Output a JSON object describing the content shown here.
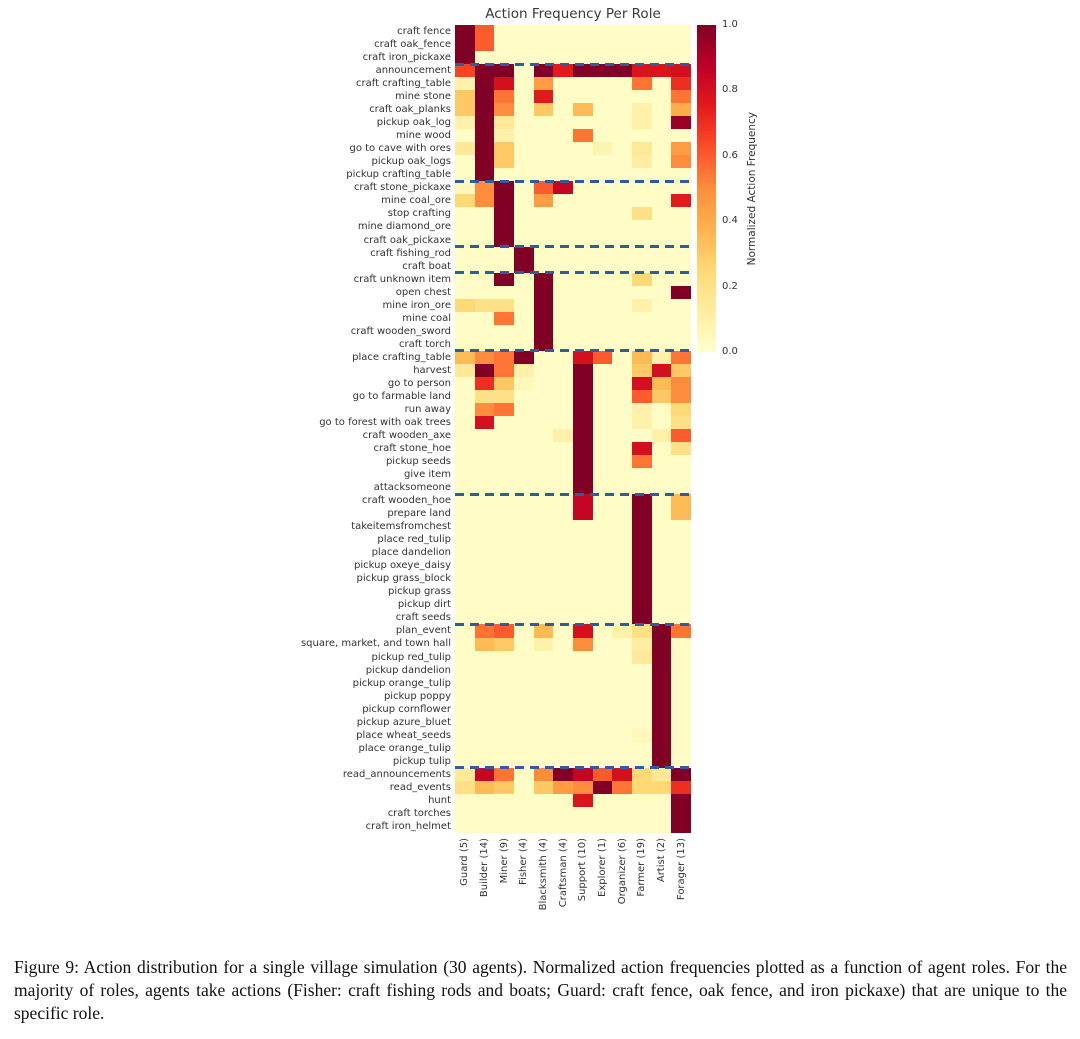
{
  "figure": {
    "caption": "Figure 9: Action distribution for a single village simulation (30 agents). Normalized action frequencies plotted as a function of agent roles. For the majority of roles, agents take actions (Fisher: craft fishing rods and boats; Guard: craft fence, oak fence, and iron pickaxe) that are unique to the specific role."
  },
  "chart_data": {
    "type": "heatmap",
    "title": "Action Frequency Per Role",
    "colormap": "YlOrRd",
    "colorbar_label": "Normalized Action Frequency",
    "colorbar_ticks": [
      1.0,
      0.8,
      0.6,
      0.4,
      0.2,
      0.0
    ],
    "value_range": [
      0.0,
      1.0
    ],
    "separator_color": "#2d5ca6",
    "row_group_separators_after": [
      3,
      12,
      17,
      19,
      25,
      36,
      46,
      57
    ],
    "columns": [
      "Guard (5)",
      "Builder (14)",
      "Miner (9)",
      "Fisher (4)",
      "Blacksmith (4)",
      "Craftsman (4)",
      "Support (10)",
      "Explorer (1)",
      "Organizer (6)",
      "Farmer (19)",
      "Artist (2)",
      "Forager (13)"
    ],
    "rows": [
      "craft fence",
      "craft oak_fence",
      "craft iron_pickaxe",
      "announcement",
      "craft crafting_table",
      "mine stone",
      "craft oak_planks",
      "pickup oak_log",
      "mine wood",
      "go to cave with ores",
      "pickup oak_logs",
      "pickup crafting_table",
      "craft stone_pickaxe",
      "mine coal_ore",
      "stop crafting",
      "mine diamond_ore",
      "craft oak_pickaxe",
      "craft fishing_rod",
      "craft boat",
      "craft unknown item",
      "open chest",
      "mine iron_ore",
      "mine coal",
      "craft wooden_sword",
      "craft torch",
      "place crafting_table",
      "harvest",
      "go to person",
      "go to farmable land",
      "run away",
      "go to forest with oak trees",
      "craft wooden_axe",
      "craft stone_hoe",
      "pickup seeds",
      "give item",
      "attacksomeone",
      "craft wooden_hoe",
      "prepare land",
      "takeitemsfromchest",
      "place red_tulip",
      "place dandelion",
      "pickup oxeye_daisy",
      "pickup grass_block",
      "pickup grass",
      "pickup dirt",
      "craft seeds",
      "plan_event",
      "square, market, and town hall",
      "pickup red_tulip",
      "pickup dandelion",
      "pickup orange_tulip",
      "pickup poppy",
      "pickup cornflower",
      "pickup azure_bluet",
      "place wheat_seeds",
      "place orange_tulip",
      "pickup tulip",
      "read_announcements",
      "read_events",
      "hunt",
      "craft torches",
      "craft iron_helmet"
    ],
    "values": [
      [
        1.0,
        0.6,
        0.02,
        0.02,
        0.02,
        0.02,
        0.02,
        0.02,
        0.02,
        0.02,
        0.02,
        0.02
      ],
      [
        1.0,
        0.6,
        0.02,
        0.02,
        0.02,
        0.02,
        0.02,
        0.02,
        0.02,
        0.02,
        0.02,
        0.02
      ],
      [
        1.0,
        0.02,
        0.02,
        0.02,
        0.02,
        0.02,
        0.02,
        0.02,
        0.02,
        0.02,
        0.02,
        0.02
      ],
      [
        0.65,
        1.0,
        1.0,
        0.0,
        1.0,
        0.75,
        1.0,
        1.0,
        1.0,
        0.78,
        0.78,
        0.8
      ],
      [
        0.1,
        1.0,
        0.8,
        0.02,
        0.45,
        0.02,
        0.02,
        0.02,
        0.02,
        0.55,
        0.02,
        0.7
      ],
      [
        0.3,
        1.0,
        0.55,
        0.02,
        0.75,
        0.02,
        0.02,
        0.02,
        0.02,
        0.02,
        0.02,
        0.55
      ],
      [
        0.3,
        1.0,
        0.5,
        0.02,
        0.3,
        0.02,
        0.35,
        0.02,
        0.02,
        0.1,
        0.02,
        0.4
      ],
      [
        0.1,
        1.0,
        0.15,
        0.02,
        0.02,
        0.02,
        0.02,
        0.02,
        0.02,
        0.1,
        0.02,
        0.95
      ],
      [
        0.02,
        1.0,
        0.1,
        0.02,
        0.02,
        0.02,
        0.55,
        0.02,
        0.02,
        0.02,
        0.02,
        0.02
      ],
      [
        0.15,
        1.0,
        0.3,
        0.02,
        0.02,
        0.02,
        0.02,
        0.08,
        0.02,
        0.15,
        0.02,
        0.45
      ],
      [
        0.02,
        1.0,
        0.3,
        0.02,
        0.02,
        0.02,
        0.02,
        0.02,
        0.02,
        0.12,
        0.02,
        0.5
      ],
      [
        0.02,
        1.0,
        0.02,
        0.02,
        0.02,
        0.02,
        0.02,
        0.02,
        0.02,
        0.02,
        0.02,
        0.02
      ],
      [
        0.05,
        0.5,
        1.0,
        0.02,
        0.6,
        0.85,
        0.02,
        0.02,
        0.02,
        0.02,
        0.02,
        0.02
      ],
      [
        0.25,
        0.5,
        1.0,
        0.02,
        0.45,
        0.02,
        0.02,
        0.02,
        0.02,
        0.02,
        0.02,
        0.75
      ],
      [
        0.02,
        0.02,
        1.0,
        0.02,
        0.02,
        0.02,
        0.02,
        0.02,
        0.02,
        0.2,
        0.02,
        0.02
      ],
      [
        0.02,
        0.02,
        1.0,
        0.02,
        0.02,
        0.02,
        0.02,
        0.02,
        0.02,
        0.02,
        0.02,
        0.02
      ],
      [
        0.02,
        0.02,
        1.0,
        0.02,
        0.02,
        0.02,
        0.02,
        0.02,
        0.02,
        0.02,
        0.02,
        0.02
      ],
      [
        0.02,
        0.02,
        0.02,
        1.0,
        0.02,
        0.02,
        0.02,
        0.02,
        0.02,
        0.02,
        0.02,
        0.02
      ],
      [
        0.02,
        0.02,
        0.02,
        1.0,
        0.02,
        0.02,
        0.02,
        0.02,
        0.02,
        0.02,
        0.02,
        0.02
      ],
      [
        0.02,
        0.02,
        1.0,
        0.02,
        1.0,
        0.02,
        0.02,
        0.02,
        0.02,
        0.25,
        0.02,
        0.02
      ],
      [
        0.02,
        0.02,
        0.02,
        0.02,
        1.0,
        0.02,
        0.02,
        0.02,
        0.02,
        0.02,
        0.02,
        1.0
      ],
      [
        0.25,
        0.2,
        0.2,
        0.02,
        1.0,
        0.02,
        0.02,
        0.02,
        0.02,
        0.1,
        0.02,
        0.02
      ],
      [
        0.02,
        0.02,
        0.55,
        0.02,
        1.0,
        0.02,
        0.02,
        0.02,
        0.02,
        0.02,
        0.02,
        0.02
      ],
      [
        0.02,
        0.02,
        0.02,
        0.02,
        1.0,
        0.02,
        0.02,
        0.02,
        0.02,
        0.02,
        0.02,
        0.02
      ],
      [
        0.02,
        0.02,
        0.02,
        0.02,
        1.0,
        0.02,
        0.02,
        0.02,
        0.02,
        0.02,
        0.02,
        0.02
      ],
      [
        0.35,
        0.5,
        0.55,
        1.0,
        0.02,
        0.02,
        0.8,
        0.6,
        0.02,
        0.35,
        0.1,
        0.55
      ],
      [
        0.15,
        1.0,
        0.55,
        0.1,
        0.02,
        0.02,
        1.0,
        0.02,
        0.02,
        0.3,
        0.8,
        0.3
      ],
      [
        0.02,
        0.7,
        0.3,
        0.05,
        0.02,
        0.02,
        1.0,
        0.02,
        0.02,
        0.8,
        0.35,
        0.5
      ],
      [
        0.02,
        0.2,
        0.2,
        0.02,
        0.02,
        0.02,
        1.0,
        0.02,
        0.02,
        0.6,
        0.3,
        0.5
      ],
      [
        0.02,
        0.5,
        0.55,
        0.02,
        0.02,
        0.02,
        1.0,
        0.02,
        0.02,
        0.1,
        0.02,
        0.25
      ],
      [
        0.02,
        0.8,
        0.02,
        0.02,
        0.02,
        0.02,
        1.0,
        0.02,
        0.02,
        0.1,
        0.02,
        0.2
      ],
      [
        0.02,
        0.02,
        0.02,
        0.02,
        0.02,
        0.1,
        1.0,
        0.02,
        0.02,
        0.02,
        0.1,
        0.6
      ],
      [
        0.02,
        0.02,
        0.02,
        0.02,
        0.02,
        0.02,
        1.0,
        0.02,
        0.02,
        0.8,
        0.02,
        0.2
      ],
      [
        0.02,
        0.02,
        0.02,
        0.02,
        0.02,
        0.02,
        1.0,
        0.02,
        0.02,
        0.55,
        0.02,
        0.02
      ],
      [
        0.02,
        0.02,
        0.02,
        0.02,
        0.02,
        0.02,
        1.0,
        0.02,
        0.02,
        0.02,
        0.02,
        0.02
      ],
      [
        0.02,
        0.02,
        0.02,
        0.02,
        0.02,
        0.02,
        1.0,
        0.02,
        0.02,
        0.02,
        0.02,
        0.02
      ],
      [
        0.02,
        0.02,
        0.02,
        0.02,
        0.02,
        0.02,
        0.85,
        0.02,
        0.02,
        1.0,
        0.02,
        0.35
      ],
      [
        0.02,
        0.02,
        0.02,
        0.02,
        0.02,
        0.02,
        0.85,
        0.02,
        0.02,
        1.0,
        0.02,
        0.35
      ],
      [
        0.02,
        0.02,
        0.02,
        0.02,
        0.02,
        0.02,
        0.02,
        0.02,
        0.02,
        1.0,
        0.02,
        0.02
      ],
      [
        0.02,
        0.02,
        0.02,
        0.02,
        0.02,
        0.02,
        0.02,
        0.02,
        0.02,
        1.0,
        0.02,
        0.02
      ],
      [
        0.02,
        0.02,
        0.02,
        0.02,
        0.02,
        0.02,
        0.02,
        0.02,
        0.02,
        1.0,
        0.02,
        0.02
      ],
      [
        0.02,
        0.02,
        0.02,
        0.02,
        0.02,
        0.02,
        0.02,
        0.02,
        0.02,
        1.0,
        0.02,
        0.02
      ],
      [
        0.02,
        0.02,
        0.02,
        0.02,
        0.02,
        0.02,
        0.02,
        0.02,
        0.02,
        1.0,
        0.02,
        0.02
      ],
      [
        0.02,
        0.02,
        0.02,
        0.02,
        0.02,
        0.02,
        0.02,
        0.02,
        0.02,
        1.0,
        0.02,
        0.02
      ],
      [
        0.02,
        0.02,
        0.02,
        0.02,
        0.02,
        0.02,
        0.02,
        0.02,
        0.02,
        1.0,
        0.02,
        0.02
      ],
      [
        0.02,
        0.02,
        0.02,
        0.02,
        0.02,
        0.02,
        0.02,
        0.02,
        0.02,
        1.0,
        0.02,
        0.02
      ],
      [
        0.02,
        0.55,
        0.6,
        0.02,
        0.35,
        0.02,
        0.8,
        0.02,
        0.1,
        0.2,
        1.0,
        0.55
      ],
      [
        0.02,
        0.35,
        0.3,
        0.02,
        0.1,
        0.02,
        0.5,
        0.02,
        0.02,
        0.12,
        1.0,
        0.02
      ],
      [
        0.02,
        0.02,
        0.02,
        0.02,
        0.02,
        0.02,
        0.02,
        0.02,
        0.02,
        0.15,
        1.0,
        0.02
      ],
      [
        0.02,
        0.02,
        0.02,
        0.02,
        0.02,
        0.02,
        0.02,
        0.02,
        0.02,
        0.02,
        1.0,
        0.02
      ],
      [
        0.02,
        0.02,
        0.02,
        0.02,
        0.02,
        0.02,
        0.02,
        0.02,
        0.02,
        0.02,
        1.0,
        0.02
      ],
      [
        0.02,
        0.02,
        0.02,
        0.02,
        0.02,
        0.02,
        0.02,
        0.02,
        0.02,
        0.02,
        1.0,
        0.02
      ],
      [
        0.02,
        0.02,
        0.02,
        0.02,
        0.02,
        0.02,
        0.02,
        0.02,
        0.02,
        0.02,
        1.0,
        0.02
      ],
      [
        0.02,
        0.02,
        0.02,
        0.02,
        0.02,
        0.02,
        0.02,
        0.02,
        0.02,
        0.02,
        1.0,
        0.02
      ],
      [
        0.02,
        0.02,
        0.02,
        0.02,
        0.02,
        0.02,
        0.02,
        0.02,
        0.02,
        0.05,
        1.0,
        0.02
      ],
      [
        0.02,
        0.02,
        0.02,
        0.02,
        0.02,
        0.02,
        0.02,
        0.02,
        0.02,
        0.02,
        1.0,
        0.02
      ],
      [
        0.02,
        0.02,
        0.02,
        0.02,
        0.02,
        0.02,
        0.02,
        0.02,
        0.02,
        0.02,
        1.0,
        0.02
      ],
      [
        0.15,
        0.85,
        0.55,
        0.02,
        0.5,
        1.0,
        0.85,
        0.6,
        0.8,
        0.25,
        0.15,
        1.0
      ],
      [
        0.2,
        0.35,
        0.3,
        0.02,
        0.3,
        0.45,
        0.5,
        1.0,
        0.55,
        0.25,
        0.25,
        0.7
      ],
      [
        0.02,
        0.02,
        0.02,
        0.02,
        0.02,
        0.02,
        0.78,
        0.02,
        0.02,
        0.02,
        0.02,
        1.0
      ],
      [
        0.02,
        0.02,
        0.02,
        0.02,
        0.02,
        0.02,
        0.02,
        0.02,
        0.02,
        0.02,
        0.02,
        1.0
      ],
      [
        0.02,
        0.02,
        0.02,
        0.02,
        0.02,
        0.02,
        0.02,
        0.02,
        0.02,
        0.02,
        0.02,
        1.0
      ]
    ]
  }
}
